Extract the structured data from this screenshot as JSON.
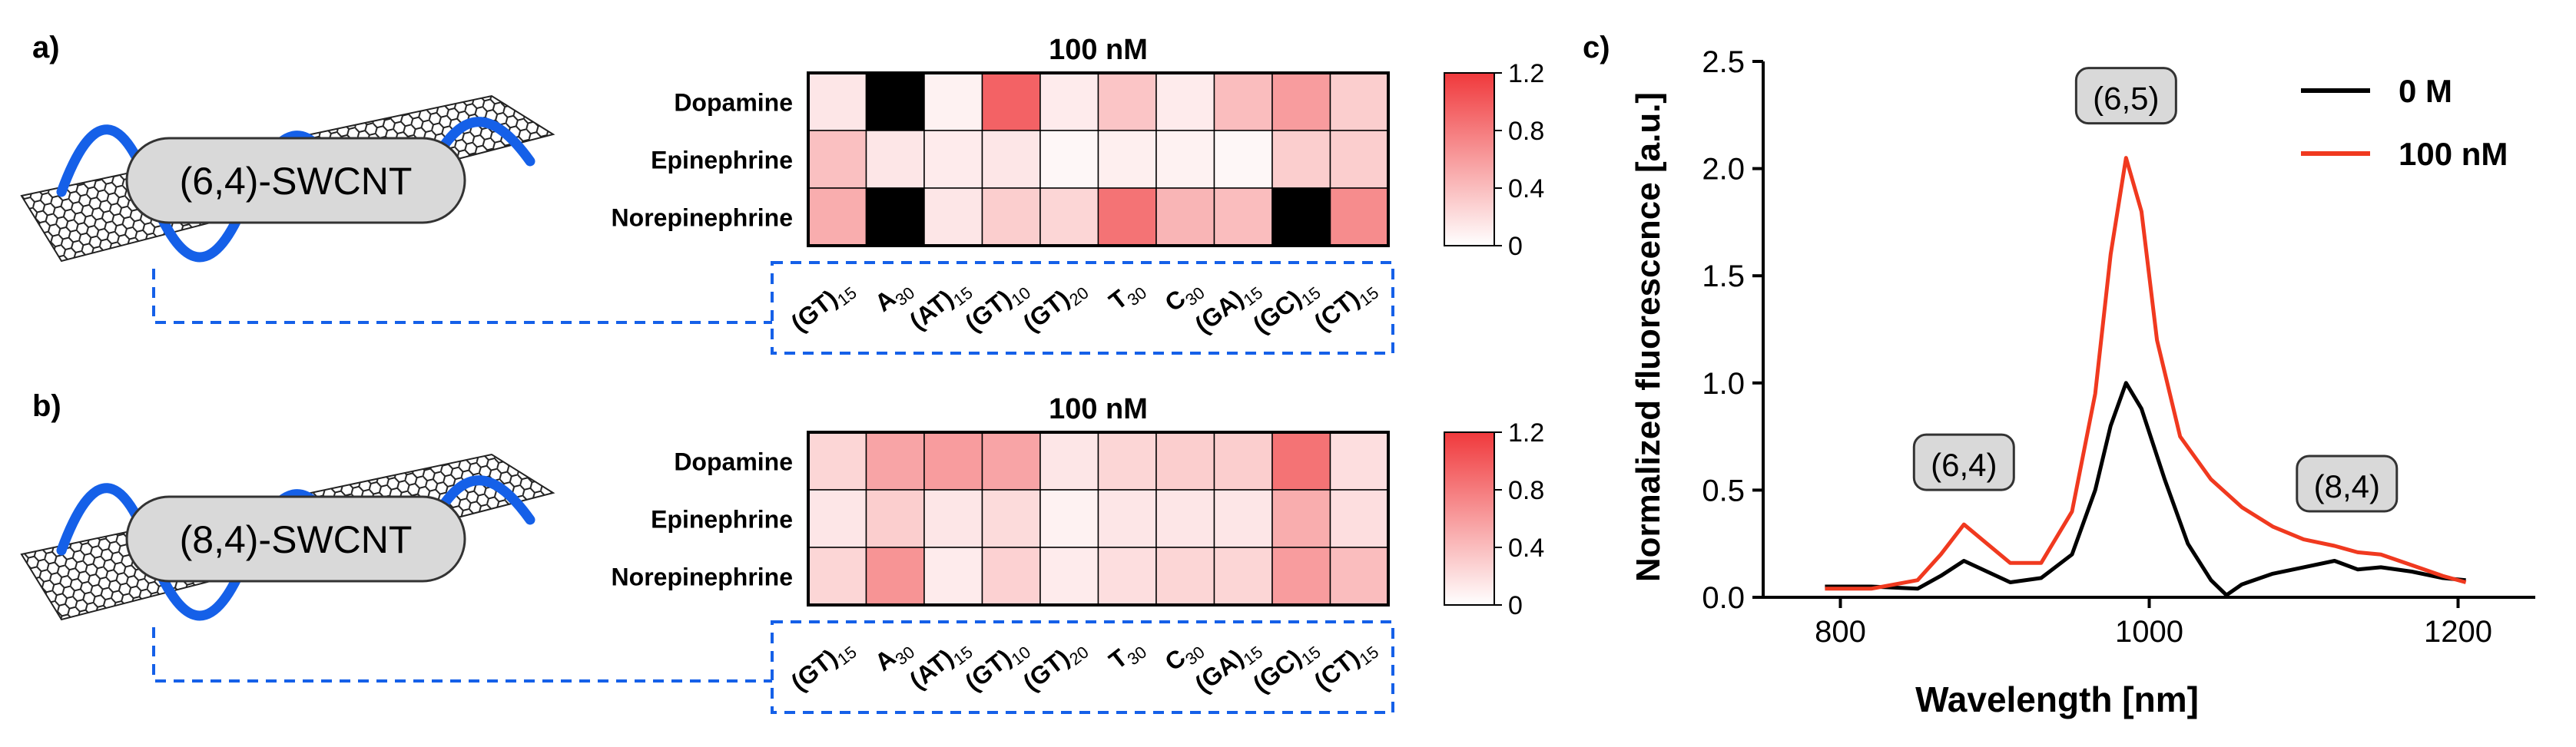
{
  "panel_a": {
    "letter": "a)",
    "tube_label": "(6,4)-SWCNT",
    "chart_data": {
      "type": "heatmap",
      "title": "100 nM",
      "rows": [
        "Dopamine",
        "Epinephrine",
        "Norepinephrine"
      ],
      "columns": [
        {
          "base": "(GT)",
          "sub": "15"
        },
        {
          "base": "A",
          "sub": "30"
        },
        {
          "base": "(AT)",
          "sub": "15"
        },
        {
          "base": "(GT)",
          "sub": "10"
        },
        {
          "base": "(GT)",
          "sub": "20"
        },
        {
          "base": "T",
          "sub": "30"
        },
        {
          "base": "C",
          "sub": "30"
        },
        {
          "base": "(GA)",
          "sub": "15"
        },
        {
          "base": "(GC)",
          "sub": "15"
        },
        {
          "base": "(CT)",
          "sub": "15"
        }
      ],
      "values": [
        [
          0.15,
          null,
          0.08,
          0.95,
          0.12,
          0.35,
          0.12,
          0.4,
          0.6,
          0.3
        ],
        [
          0.38,
          0.15,
          0.12,
          0.15,
          0.05,
          0.1,
          0.08,
          0.05,
          0.3,
          0.3
        ],
        [
          0.5,
          null,
          0.15,
          0.3,
          0.25,
          0.85,
          0.45,
          0.4,
          null,
          0.7
        ]
      ],
      "null_color": "#000000",
      "colorbar": {
        "min": 0,
        "max": 1.2,
        "ticks": [
          "1.2",
          "0.8",
          "0.4",
          "0"
        ],
        "low_color": "#ffffff",
        "high_color": "#f0393c"
      }
    }
  },
  "panel_b": {
    "letter": "b)",
    "tube_label": "(8,4)-SWCNT",
    "chart_data": {
      "type": "heatmap",
      "title": "100 nM",
      "rows": [
        "Dopamine",
        "Epinephrine",
        "Norepinephrine"
      ],
      "columns": [
        {
          "base": "(GT)",
          "sub": "15"
        },
        {
          "base": "A",
          "sub": "30"
        },
        {
          "base": "(AT)",
          "sub": "15"
        },
        {
          "base": "(GT)",
          "sub": "10"
        },
        {
          "base": "(GT)",
          "sub": "20"
        },
        {
          "base": "T",
          "sub": "30"
        },
        {
          "base": "C",
          "sub": "30"
        },
        {
          "base": "(GA)",
          "sub": "15"
        },
        {
          "base": "(GC)",
          "sub": "15"
        },
        {
          "base": "(CT)",
          "sub": "15"
        }
      ],
      "values": [
        [
          0.25,
          0.55,
          0.6,
          0.55,
          0.15,
          0.25,
          0.3,
          0.3,
          0.85,
          0.2
        ],
        [
          0.15,
          0.3,
          0.15,
          0.22,
          0.08,
          0.15,
          0.15,
          0.15,
          0.5,
          0.2
        ],
        [
          0.25,
          0.65,
          0.12,
          0.28,
          0.12,
          0.2,
          0.25,
          0.25,
          0.6,
          0.4
        ]
      ],
      "null_color": "#000000",
      "colorbar": {
        "min": 0,
        "max": 1.2,
        "ticks": [
          "1.2",
          "0.8",
          "0.4",
          "0"
        ],
        "low_color": "#ffffff",
        "high_color": "#f0393c"
      }
    }
  },
  "panel_c": {
    "letter": "c)",
    "chart_data": {
      "type": "line",
      "xlabel": "Wavelength [nm]",
      "ylabel": "Normalized fluorescence [a.u.]",
      "xlim": [
        750,
        1250
      ],
      "ylim": [
        0,
        2.5
      ],
      "xticks": [
        800,
        1000,
        1200
      ],
      "yticks": [
        0,
        0.5,
        1.0,
        1.5,
        2.0,
        2.5
      ],
      "ytick_labels": [
        "0.0",
        "0.5",
        "1.0",
        "1.5",
        "2.0",
        "2.5"
      ],
      "legend_position": "top-right",
      "series": [
        {
          "name": "0 M",
          "color": "#000000",
          "x": [
            790,
            820,
            850,
            865,
            880,
            895,
            910,
            930,
            950,
            965,
            975,
            985,
            995,
            1010,
            1025,
            1040,
            1050,
            1060,
            1080,
            1100,
            1120,
            1135,
            1150,
            1170,
            1190,
            1205
          ],
          "y": [
            0.05,
            0.05,
            0.04,
            0.1,
            0.17,
            0.12,
            0.07,
            0.09,
            0.2,
            0.5,
            0.8,
            1.0,
            0.88,
            0.55,
            0.25,
            0.08,
            0.01,
            0.06,
            0.11,
            0.14,
            0.17,
            0.13,
            0.14,
            0.12,
            0.09,
            0.08
          ]
        },
        {
          "name": "100 nM",
          "color": "#f0391f",
          "x": [
            790,
            820,
            850,
            865,
            880,
            895,
            910,
            930,
            950,
            965,
            975,
            985,
            995,
            1005,
            1020,
            1040,
            1060,
            1080,
            1100,
            1120,
            1135,
            1150,
            1170,
            1190,
            1205
          ],
          "y": [
            0.04,
            0.04,
            0.08,
            0.2,
            0.34,
            0.25,
            0.16,
            0.16,
            0.4,
            0.95,
            1.6,
            2.05,
            1.8,
            1.2,
            0.75,
            0.55,
            0.42,
            0.33,
            0.27,
            0.24,
            0.21,
            0.2,
            0.15,
            0.1,
            0.07
          ]
        }
      ],
      "annotations": [
        {
          "label": "(6,5)",
          "x": 985,
          "y": 2.05
        },
        {
          "label": "(6,4)",
          "x": 880,
          "y": 0.34
        },
        {
          "label": "(8,4)",
          "x": 1128,
          "y": 0.24
        }
      ]
    }
  }
}
